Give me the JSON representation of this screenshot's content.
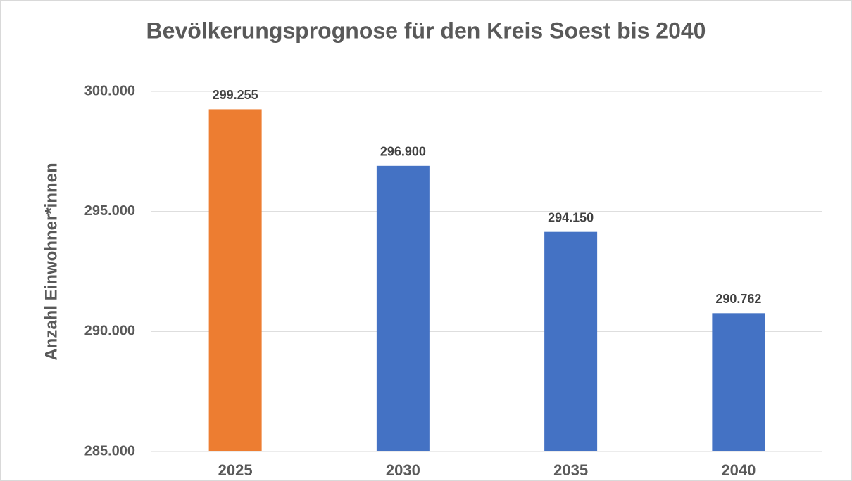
{
  "chart_data": {
    "type": "bar",
    "title": "Bevölkerungsprognose für den Kreis Soest bis 2040",
    "y_label": "Anzahl Einwohner*innen",
    "categories": [
      "2025",
      "2030",
      "2035",
      "2040"
    ],
    "values": [
      299255,
      296900,
      294150,
      290762
    ],
    "value_labels": [
      "299.255",
      "296.900",
      "294.150",
      "290.762"
    ],
    "colors": [
      "#ed7d31",
      "#4472c4",
      "#4472c4",
      "#4472c4"
    ],
    "ylim": [
      285000,
      300000
    ],
    "yticks": [
      {
        "value": 285000,
        "label": "285.000"
      },
      {
        "value": 290000,
        "label": "290.000"
      },
      {
        "value": 295000,
        "label": "295.000"
      },
      {
        "value": 300000,
        "label": "300.000"
      }
    ],
    "grid": true
  }
}
